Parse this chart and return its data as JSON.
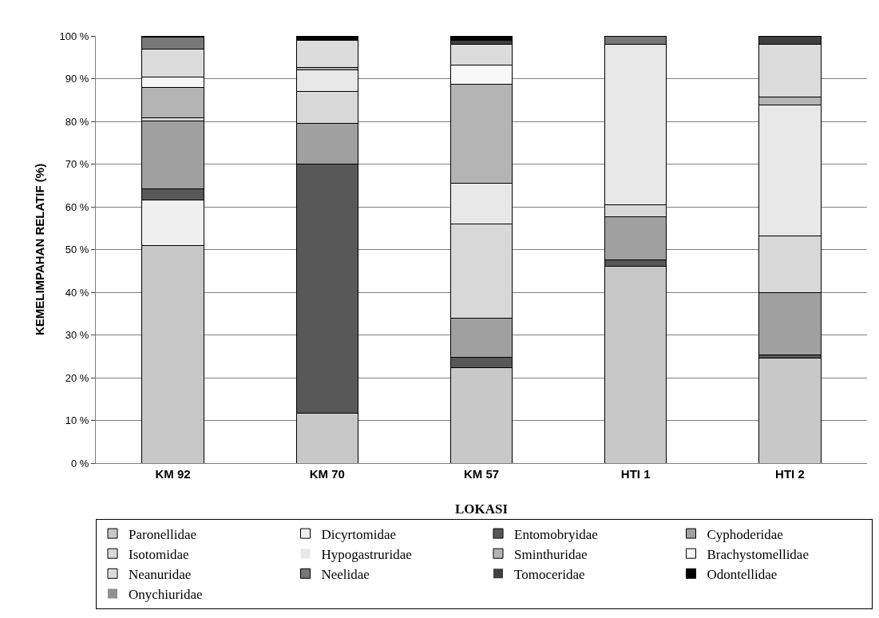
{
  "chart_data": {
    "type": "bar",
    "stacked": true,
    "xlabel": "LOKASI",
    "ylabel": "KEMELIMPAHAN RELATIF (%)",
    "categories": [
      "KM 92",
      "KM 70",
      "KM 57",
      "HTI 1",
      "HTI 2"
    ],
    "ylim": [
      0,
      100
    ],
    "yticks": [
      {
        "value": 0,
        "label": "0 %"
      },
      {
        "value": 10,
        "label": "10 %"
      },
      {
        "value": 20,
        "label": "20 %"
      },
      {
        "value": 30,
        "label": "30 %"
      },
      {
        "value": 40,
        "label": "40 %"
      },
      {
        "value": 50,
        "label": "50 %"
      },
      {
        "value": 60,
        "label": "60 %"
      },
      {
        "value": 70,
        "label": "70 %"
      },
      {
        "value": 80,
        "label": "80 %"
      },
      {
        "value": 90,
        "label": "90 %"
      },
      {
        "value": 100,
        "label": "100 %"
      }
    ],
    "grid": "y",
    "legend": "bottom",
    "series": [
      {
        "name": "Paronellidae",
        "color": "#c8c8c8",
        "values": [
          51,
          11.7,
          22.3,
          46,
          24.5
        ]
      },
      {
        "name": "Dicyrtomidae",
        "color": "#f0f0f0",
        "values": [
          10.5,
          0,
          0,
          0,
          0
        ]
      },
      {
        "name": "Entomobryidae",
        "color": "#585858",
        "values": [
          2.8,
          58.3,
          2.4,
          1.5,
          0.8
        ]
      },
      {
        "name": "Cyphoderidae",
        "color": "#a0a0a0",
        "values": [
          15.8,
          9.5,
          9.2,
          10.2,
          14.7
        ]
      },
      {
        "name": "Isotomidae",
        "color": "#d8d8d8",
        "values": [
          0.7,
          7.5,
          22,
          2.8,
          13.2
        ]
      },
      {
        "name": "Hypogastruridae",
        "color": "#e8e8e8",
        "values": [
          0,
          5,
          9.6,
          37.6,
          30.7
        ]
      },
      {
        "name": "Sminthuridae",
        "color": "#b4b4b4",
        "values": [
          7.2,
          0.7,
          23.2,
          0,
          1.8
        ]
      },
      {
        "name": "Brachystomellidae",
        "color": "#f8f8f8",
        "values": [
          2.3,
          0,
          4.4,
          0,
          0
        ]
      },
      {
        "name": "Neanuridae",
        "color": "#dcdcdc",
        "values": [
          6.7,
          6.3,
          4.9,
          0,
          12.3
        ]
      },
      {
        "name": "Neelidae",
        "color": "#787878",
        "values": [
          2.7,
          0,
          0,
          1.9,
          0
        ]
      },
      {
        "name": "Tomoceridae",
        "color": "#404040",
        "values": [
          0,
          0,
          1,
          0,
          2
        ]
      },
      {
        "name": "Odontellidae",
        "color": "#000000",
        "values": [
          0.3,
          1,
          1,
          0,
          0
        ]
      },
      {
        "name": "Onychiuridae",
        "color": "#909090",
        "values": [
          0,
          0,
          0,
          0,
          0
        ]
      }
    ]
  }
}
